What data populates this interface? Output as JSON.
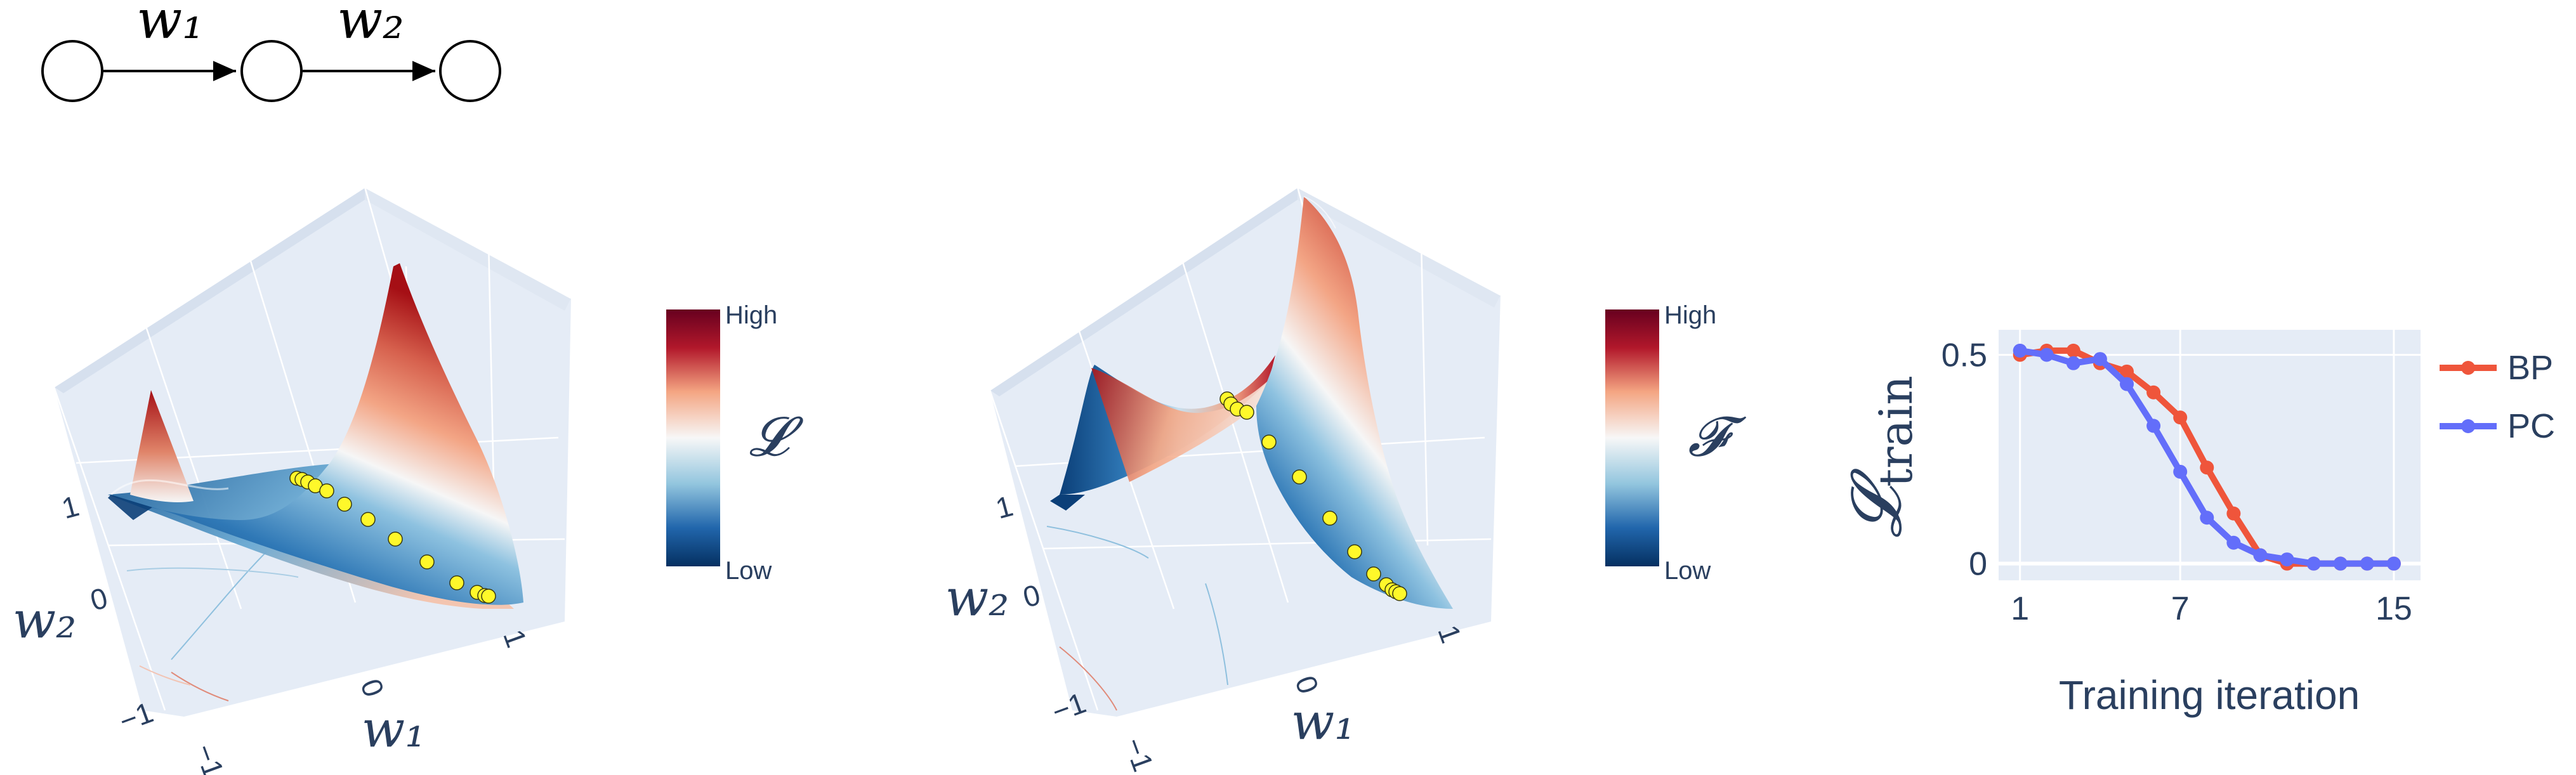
{
  "network": {
    "nodes": 3,
    "edge_labels": [
      "w₁",
      "w₂"
    ]
  },
  "panel_bp": {
    "title": "",
    "axis_x_label": "w₁",
    "axis_y_label": "w₂",
    "x_ticks": [
      "−1",
      "0",
      "1"
    ],
    "y_ticks": [
      "−1",
      "0",
      "1"
    ],
    "colorbar": {
      "symbol": "𝓛",
      "high_label": "High",
      "low_label": "Low"
    },
    "colors": {
      "high": "#a50f15",
      "mid": "#f7f7f7",
      "low": "#08306b",
      "points": "#fff82a"
    }
  },
  "panel_pc": {
    "title": "",
    "axis_x_label": "w₁",
    "axis_y_label": "w₂",
    "x_ticks": [
      "−1",
      "0",
      "1"
    ],
    "y_ticks": [
      "−1",
      "0",
      "1"
    ],
    "colorbar": {
      "symbol": "𝓕",
      "high_label": "High",
      "low_label": "Low"
    },
    "colors": {
      "high": "#a50f15",
      "mid": "#f7f7f7",
      "low": "#08306b",
      "points": "#fff82a"
    }
  },
  "chart_data": {
    "type": "line",
    "xlabel": "Training iteration",
    "ylabel": "𝓛train",
    "ylabel_main": "𝓛",
    "ylabel_sub": "train",
    "x_ticks": [
      1,
      7,
      15
    ],
    "y_ticks": [
      "0",
      "0.5"
    ],
    "y_tick_values": [
      0,
      0.5
    ],
    "xlim": [
      0.2,
      16.0
    ],
    "ylim": [
      -0.04,
      0.56
    ],
    "grid": true,
    "legend_position": "right",
    "x": [
      1,
      2,
      3,
      4,
      5,
      6,
      7,
      8,
      9,
      10,
      11,
      12,
      13,
      14,
      15
    ],
    "series": [
      {
        "name": "BP",
        "color": "#ef553b",
        "values": [
          0.5,
          0.51,
          0.51,
          0.48,
          0.46,
          0.41,
          0.35,
          0.23,
          0.12,
          0.02,
          0.0,
          0.0,
          0.0,
          0.0,
          0.0
        ]
      },
      {
        "name": "PC",
        "color": "#636efa",
        "values": [
          0.51,
          0.5,
          0.48,
          0.49,
          0.43,
          0.33,
          0.22,
          0.11,
          0.05,
          0.02,
          0.01,
          0.0,
          0.0,
          0.0,
          0.0
        ]
      }
    ]
  }
}
